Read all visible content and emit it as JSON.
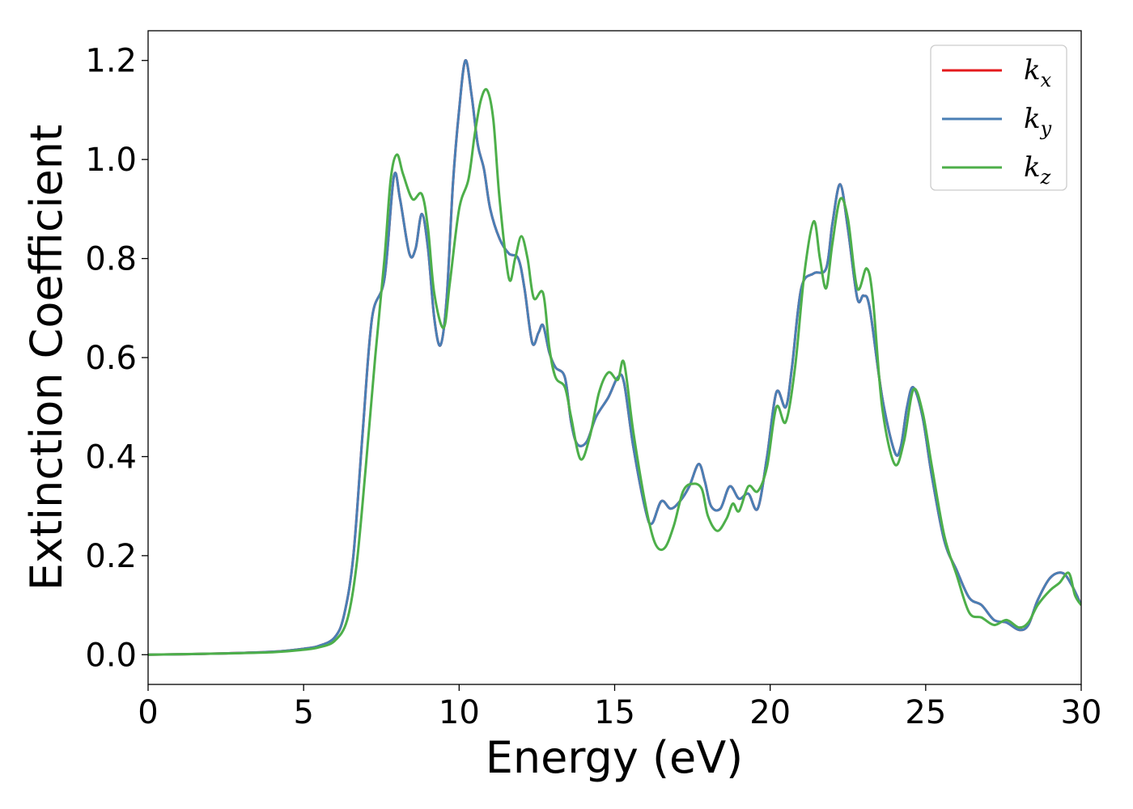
{
  "chart_data": {
    "type": "line",
    "xlabel": "Energy (eV)",
    "ylabel": "Extinction Coefficient",
    "xlim": [
      0,
      30
    ],
    "ylim": [
      -0.06,
      1.26
    ],
    "xticks": [
      0,
      5,
      10,
      15,
      20,
      25,
      30
    ],
    "xtick_labels": [
      "0",
      "5",
      "10",
      "15",
      "20",
      "25",
      "30"
    ],
    "yticks": [
      0.0,
      0.2,
      0.4,
      0.6,
      0.8,
      1.0,
      1.2
    ],
    "ytick_labels": [
      "0.0",
      "0.2",
      "0.4",
      "0.6",
      "0.8",
      "1.0",
      "1.2"
    ],
    "grid": false,
    "legend_position": "top-right",
    "series": [
      {
        "name": "k",
        "subscript": "x",
        "color": "#e41a1c",
        "points": [
          [
            0,
            0
          ],
          [
            2,
            0.002
          ],
          [
            4,
            0.006
          ],
          [
            5,
            0.012
          ],
          [
            5.5,
            0.018
          ],
          [
            6,
            0.035
          ],
          [
            6.3,
            0.08
          ],
          [
            6.6,
            0.2
          ],
          [
            6.9,
            0.45
          ],
          [
            7.2,
            0.68
          ],
          [
            7.6,
            0.76
          ],
          [
            7.9,
            0.965
          ],
          [
            8.1,
            0.92
          ],
          [
            8.4,
            0.81
          ],
          [
            8.6,
            0.82
          ],
          [
            8.8,
            0.89
          ],
          [
            9.0,
            0.82
          ],
          [
            9.2,
            0.68
          ],
          [
            9.4,
            0.625
          ],
          [
            9.6,
            0.72
          ],
          [
            9.8,
            0.95
          ],
          [
            10.0,
            1.1
          ],
          [
            10.2,
            1.2
          ],
          [
            10.4,
            1.13
          ],
          [
            10.6,
            1.03
          ],
          [
            10.8,
            0.98
          ],
          [
            11.0,
            0.9
          ],
          [
            11.3,
            0.84
          ],
          [
            11.6,
            0.81
          ],
          [
            11.9,
            0.8
          ],
          [
            12.1,
            0.74
          ],
          [
            12.35,
            0.63
          ],
          [
            12.55,
            0.65
          ],
          [
            12.7,
            0.665
          ],
          [
            12.9,
            0.61
          ],
          [
            13.1,
            0.58
          ],
          [
            13.4,
            0.56
          ],
          [
            13.6,
            0.47
          ],
          [
            13.8,
            0.425
          ],
          [
            14.1,
            0.43
          ],
          [
            14.4,
            0.48
          ],
          [
            14.8,
            0.52
          ],
          [
            15.1,
            0.56
          ],
          [
            15.3,
            0.55
          ],
          [
            15.6,
            0.42
          ],
          [
            16.0,
            0.29
          ],
          [
            16.2,
            0.265
          ],
          [
            16.5,
            0.31
          ],
          [
            16.8,
            0.295
          ],
          [
            17.1,
            0.31
          ],
          [
            17.4,
            0.34
          ],
          [
            17.7,
            0.385
          ],
          [
            17.9,
            0.35
          ],
          [
            18.1,
            0.3
          ],
          [
            18.4,
            0.295
          ],
          [
            18.7,
            0.34
          ],
          [
            19.0,
            0.315
          ],
          [
            19.3,
            0.325
          ],
          [
            19.6,
            0.295
          ],
          [
            19.9,
            0.4
          ],
          [
            20.2,
            0.53
          ],
          [
            20.5,
            0.5
          ],
          [
            20.7,
            0.58
          ],
          [
            21.0,
            0.74
          ],
          [
            21.4,
            0.77
          ],
          [
            21.8,
            0.78
          ],
          [
            22.0,
            0.87
          ],
          [
            22.25,
            0.95
          ],
          [
            22.5,
            0.86
          ],
          [
            22.8,
            0.72
          ],
          [
            23.0,
            0.725
          ],
          [
            23.2,
            0.7
          ],
          [
            23.6,
            0.52
          ],
          [
            24.0,
            0.41
          ],
          [
            24.2,
            0.42
          ],
          [
            24.4,
            0.5
          ],
          [
            24.6,
            0.54
          ],
          [
            24.9,
            0.48
          ],
          [
            25.2,
            0.36
          ],
          [
            25.6,
            0.23
          ],
          [
            26.0,
            0.17
          ],
          [
            26.4,
            0.115
          ],
          [
            26.8,
            0.1
          ],
          [
            27.2,
            0.07
          ],
          [
            27.6,
            0.065
          ],
          [
            28.0,
            0.05
          ],
          [
            28.3,
            0.06
          ],
          [
            28.6,
            0.11
          ],
          [
            29.0,
            0.155
          ],
          [
            29.4,
            0.165
          ],
          [
            29.7,
            0.14
          ],
          [
            30.0,
            0.1
          ]
        ]
      },
      {
        "name": "k",
        "subscript": "y",
        "color": "#4a7fb5",
        "points": [
          [
            0,
            0
          ],
          [
            2,
            0.002
          ],
          [
            4,
            0.006
          ],
          [
            5,
            0.012
          ],
          [
            5.5,
            0.018
          ],
          [
            6,
            0.035
          ],
          [
            6.3,
            0.08
          ],
          [
            6.6,
            0.2
          ],
          [
            6.9,
            0.45
          ],
          [
            7.2,
            0.68
          ],
          [
            7.6,
            0.76
          ],
          [
            7.9,
            0.965
          ],
          [
            8.1,
            0.92
          ],
          [
            8.4,
            0.81
          ],
          [
            8.6,
            0.82
          ],
          [
            8.8,
            0.89
          ],
          [
            9.0,
            0.82
          ],
          [
            9.2,
            0.68
          ],
          [
            9.4,
            0.625
          ],
          [
            9.6,
            0.72
          ],
          [
            9.8,
            0.95
          ],
          [
            10.0,
            1.1
          ],
          [
            10.2,
            1.2
          ],
          [
            10.4,
            1.13
          ],
          [
            10.6,
            1.03
          ],
          [
            10.8,
            0.98
          ],
          [
            11.0,
            0.9
          ],
          [
            11.3,
            0.84
          ],
          [
            11.6,
            0.81
          ],
          [
            11.9,
            0.8
          ],
          [
            12.1,
            0.74
          ],
          [
            12.35,
            0.63
          ],
          [
            12.55,
            0.65
          ],
          [
            12.7,
            0.665
          ],
          [
            12.9,
            0.61
          ],
          [
            13.1,
            0.58
          ],
          [
            13.4,
            0.56
          ],
          [
            13.6,
            0.47
          ],
          [
            13.8,
            0.425
          ],
          [
            14.1,
            0.43
          ],
          [
            14.4,
            0.48
          ],
          [
            14.8,
            0.52
          ],
          [
            15.1,
            0.56
          ],
          [
            15.3,
            0.55
          ],
          [
            15.6,
            0.42
          ],
          [
            16.0,
            0.29
          ],
          [
            16.2,
            0.265
          ],
          [
            16.5,
            0.31
          ],
          [
            16.8,
            0.295
          ],
          [
            17.1,
            0.31
          ],
          [
            17.4,
            0.34
          ],
          [
            17.7,
            0.385
          ],
          [
            17.9,
            0.35
          ],
          [
            18.1,
            0.3
          ],
          [
            18.4,
            0.295
          ],
          [
            18.7,
            0.34
          ],
          [
            19.0,
            0.315
          ],
          [
            19.3,
            0.325
          ],
          [
            19.6,
            0.295
          ],
          [
            19.9,
            0.4
          ],
          [
            20.2,
            0.53
          ],
          [
            20.5,
            0.5
          ],
          [
            20.7,
            0.58
          ],
          [
            21.0,
            0.74
          ],
          [
            21.4,
            0.77
          ],
          [
            21.8,
            0.78
          ],
          [
            22.0,
            0.87
          ],
          [
            22.25,
            0.95
          ],
          [
            22.5,
            0.86
          ],
          [
            22.8,
            0.72
          ],
          [
            23.0,
            0.725
          ],
          [
            23.2,
            0.7
          ],
          [
            23.6,
            0.52
          ],
          [
            24.0,
            0.41
          ],
          [
            24.2,
            0.42
          ],
          [
            24.4,
            0.5
          ],
          [
            24.6,
            0.54
          ],
          [
            24.9,
            0.48
          ],
          [
            25.2,
            0.36
          ],
          [
            25.6,
            0.23
          ],
          [
            26.0,
            0.17
          ],
          [
            26.4,
            0.115
          ],
          [
            26.8,
            0.1
          ],
          [
            27.2,
            0.07
          ],
          [
            27.6,
            0.065
          ],
          [
            28.0,
            0.05
          ],
          [
            28.3,
            0.06
          ],
          [
            28.6,
            0.11
          ],
          [
            29.0,
            0.155
          ],
          [
            29.4,
            0.165
          ],
          [
            29.7,
            0.14
          ],
          [
            30.0,
            0.1
          ]
        ]
      },
      {
        "name": "k",
        "subscript": "z",
        "color": "#4daf4a",
        "points": [
          [
            0,
            0
          ],
          [
            2,
            0.002
          ],
          [
            4,
            0.005
          ],
          [
            5,
            0.01
          ],
          [
            5.5,
            0.015
          ],
          [
            6,
            0.028
          ],
          [
            6.4,
            0.07
          ],
          [
            6.7,
            0.18
          ],
          [
            7.0,
            0.38
          ],
          [
            7.3,
            0.6
          ],
          [
            7.6,
            0.8
          ],
          [
            7.8,
            0.96
          ],
          [
            8.0,
            1.01
          ],
          [
            8.2,
            0.97
          ],
          [
            8.5,
            0.92
          ],
          [
            8.8,
            0.93
          ],
          [
            9.0,
            0.86
          ],
          [
            9.2,
            0.73
          ],
          [
            9.5,
            0.66
          ],
          [
            9.7,
            0.75
          ],
          [
            10.0,
            0.9
          ],
          [
            10.3,
            0.96
          ],
          [
            10.5,
            1.05
          ],
          [
            10.7,
            1.12
          ],
          [
            10.9,
            1.14
          ],
          [
            11.1,
            1.08
          ],
          [
            11.3,
            0.92
          ],
          [
            11.6,
            0.76
          ],
          [
            11.8,
            0.8
          ],
          [
            12.0,
            0.845
          ],
          [
            12.2,
            0.8
          ],
          [
            12.4,
            0.72
          ],
          [
            12.7,
            0.73
          ],
          [
            12.9,
            0.62
          ],
          [
            13.1,
            0.56
          ],
          [
            13.4,
            0.54
          ],
          [
            13.6,
            0.48
          ],
          [
            13.9,
            0.395
          ],
          [
            14.2,
            0.44
          ],
          [
            14.5,
            0.53
          ],
          [
            14.8,
            0.57
          ],
          [
            15.1,
            0.555
          ],
          [
            15.3,
            0.59
          ],
          [
            15.6,
            0.45
          ],
          [
            16.0,
            0.3
          ],
          [
            16.3,
            0.225
          ],
          [
            16.6,
            0.215
          ],
          [
            16.9,
            0.26
          ],
          [
            17.2,
            0.33
          ],
          [
            17.5,
            0.345
          ],
          [
            17.8,
            0.335
          ],
          [
            18.0,
            0.28
          ],
          [
            18.3,
            0.25
          ],
          [
            18.6,
            0.275
          ],
          [
            18.8,
            0.305
          ],
          [
            19.0,
            0.29
          ],
          [
            19.3,
            0.34
          ],
          [
            19.6,
            0.33
          ],
          [
            19.9,
            0.38
          ],
          [
            20.2,
            0.5
          ],
          [
            20.5,
            0.47
          ],
          [
            20.8,
            0.58
          ],
          [
            21.1,
            0.77
          ],
          [
            21.4,
            0.875
          ],
          [
            21.6,
            0.8
          ],
          [
            21.8,
            0.74
          ],
          [
            22.0,
            0.83
          ],
          [
            22.25,
            0.92
          ],
          [
            22.5,
            0.88
          ],
          [
            22.8,
            0.74
          ],
          [
            23.1,
            0.78
          ],
          [
            23.3,
            0.72
          ],
          [
            23.6,
            0.5
          ],
          [
            24.0,
            0.385
          ],
          [
            24.3,
            0.43
          ],
          [
            24.6,
            0.535
          ],
          [
            24.9,
            0.49
          ],
          [
            25.2,
            0.38
          ],
          [
            25.6,
            0.24
          ],
          [
            26.0,
            0.16
          ],
          [
            26.4,
            0.085
          ],
          [
            26.8,
            0.075
          ],
          [
            27.2,
            0.06
          ],
          [
            27.6,
            0.07
          ],
          [
            28.0,
            0.055
          ],
          [
            28.3,
            0.065
          ],
          [
            28.6,
            0.1
          ],
          [
            29.0,
            0.13
          ],
          [
            29.3,
            0.145
          ],
          [
            29.6,
            0.165
          ],
          [
            29.8,
            0.12
          ],
          [
            30.0,
            0.1
          ]
        ]
      }
    ]
  }
}
